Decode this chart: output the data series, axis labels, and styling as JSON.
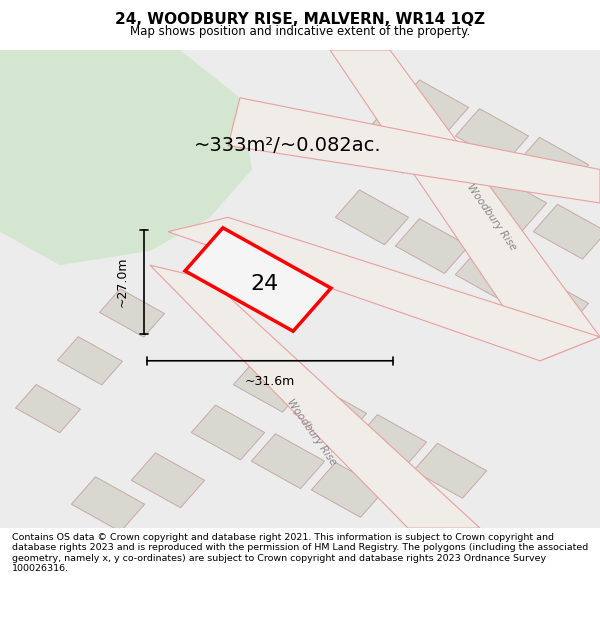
{
  "title": "24, WOODBURY RISE, MALVERN, WR14 1QZ",
  "subtitle": "Map shows position and indicative extent of the property.",
  "area_text": "~333m²/~0.082ac.",
  "number_label": "24",
  "dim_width": "~31.6m",
  "dim_height": "~27.0m",
  "footer_text": "Contains OS data © Crown copyright and database right 2021. This information is subject to Crown copyright and database rights 2023 and is reproduced with the permission of HM Land Registry. The polygons (including the associated geometry, namely x, y co-ordinates) are subject to Crown copyright and database rights 2023 Ordnance Survey 100026316.",
  "bg_color": "#f0f0ea",
  "map_bg": "#e8e8e0",
  "green_area_color": "#d4e6d0",
  "plot_outline_color": "#e8a0a0",
  "highlight_color": "#ff0000",
  "road_color": "#e8a0a0",
  "block_color": "#d8d8d0",
  "street_label_1": "Woodbury Rise",
  "street_label_2": "Woodbury Rise"
}
